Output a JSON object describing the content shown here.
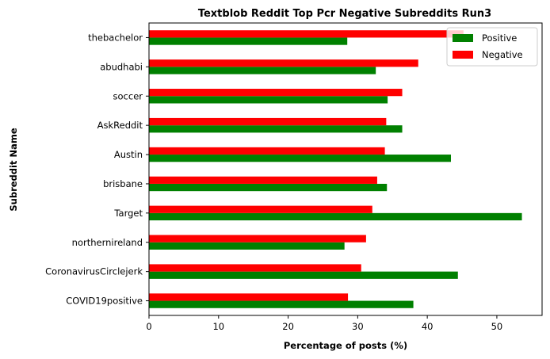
{
  "chart_data": {
    "type": "bar",
    "orientation": "horizontal",
    "title": "Textblob Reddit Top Pcr Negative Subreddits Run3",
    "xlabel": "Percentage of posts (%)",
    "ylabel": "Subreddit Name",
    "xlim": [
      0,
      56.5
    ],
    "xticks": [
      0,
      10,
      20,
      30,
      40,
      50
    ],
    "grid": false,
    "legend_position": "top-right",
    "categories": [
      "COVID19positive",
      "CoronavirusCirclejerk",
      "northernireland",
      "Target",
      "brisbane",
      "Austin",
      "AskReddit",
      "soccer",
      "abudhabi",
      "thebachelor"
    ],
    "series": [
      {
        "name": "Positive",
        "color": "#008000",
        "values": [
          38.0,
          44.4,
          28.1,
          53.6,
          34.2,
          43.4,
          36.4,
          34.3,
          32.6,
          28.5
        ]
      },
      {
        "name": "Negative",
        "color": "#ff0000",
        "values": [
          28.6,
          30.5,
          31.2,
          32.1,
          32.8,
          33.9,
          34.1,
          36.4,
          38.7,
          45.2
        ]
      }
    ]
  }
}
